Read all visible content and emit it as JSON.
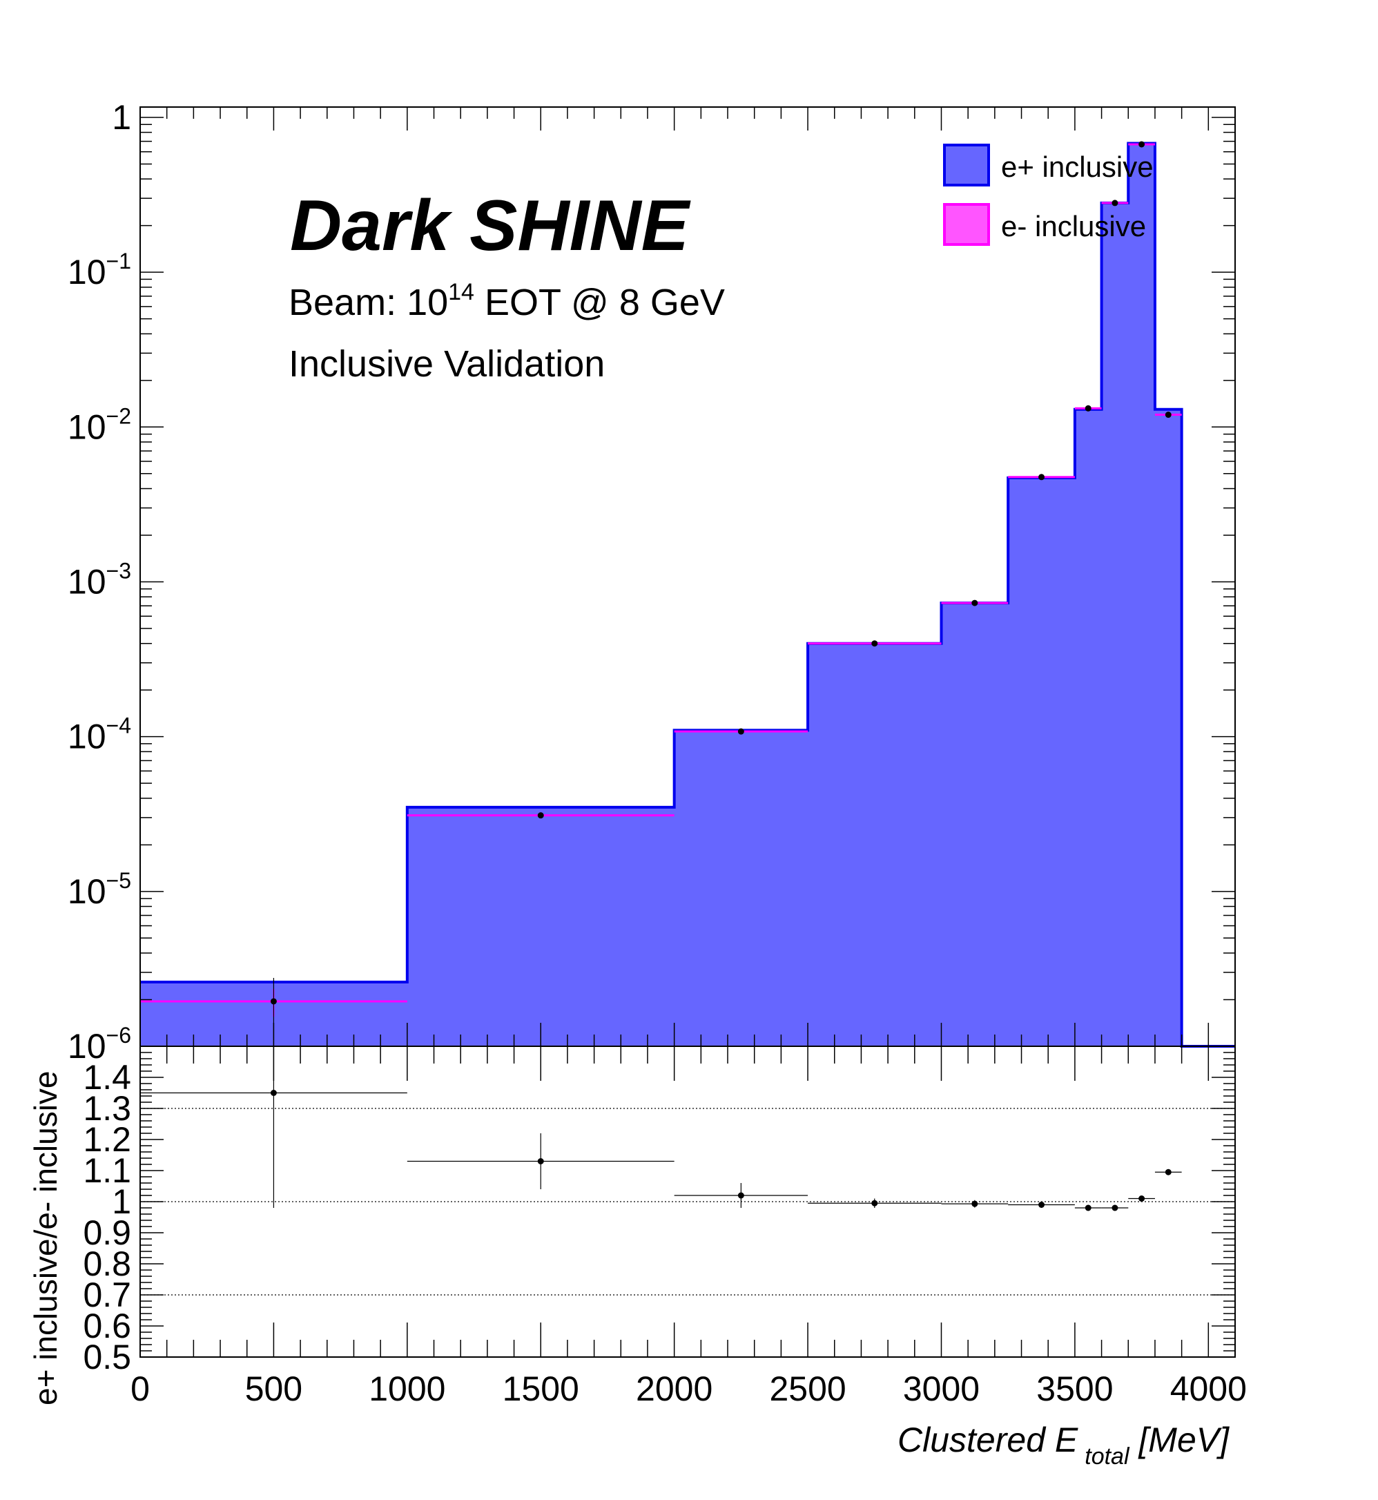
{
  "chart_data": [
    {
      "type": "histogram",
      "panel": "main",
      "label_title": "Dark SHINE",
      "label_beam_prefix": "Beam: 10",
      "label_beam_exp": "14",
      "label_beam_suffix": " EOT @ 8 GeV",
      "label_line3": "Inclusive Validation",
      "y_scale": "log",
      "ylim": [
        1e-06,
        1
      ],
      "y_ticks": [
        {
          "value": 1,
          "base": "1",
          "exp": ""
        },
        {
          "value": 0.1,
          "base": "10",
          "exp": "−1"
        },
        {
          "value": 0.01,
          "base": "10",
          "exp": "−2"
        },
        {
          "value": 0.001,
          "base": "10",
          "exp": "−3"
        },
        {
          "value": 0.0001,
          "base": "10",
          "exp": "−4"
        },
        {
          "value": 1e-05,
          "base": "10",
          "exp": "−5"
        },
        {
          "value": 1e-06,
          "base": "10",
          "exp": "−6"
        }
      ],
      "bin_edges": [
        0,
        1000,
        2000,
        2500,
        3000,
        3250,
        3500,
        3600,
        3700,
        3800,
        3900,
        4100
      ],
      "legend_position": "top-right",
      "series": [
        {
          "name": "e+ inclusive",
          "style": "filled",
          "fill": "#6666ff",
          "line": "#0000ee",
          "values": [
            2.6e-06,
            3.5e-05,
            0.00011,
            0.0004,
            0.00073,
            0.0047,
            0.013,
            0.28,
            0.68,
            0.013,
            0
          ]
        },
        {
          "name": "e- inclusive",
          "style": "markers",
          "fill": "#ff55ff",
          "line": "#ff00ff",
          "values": [
            1.95e-06,
            3.1e-05,
            0.000108,
            0.0004,
            0.00073,
            0.00475,
            0.0132,
            0.28,
            0.67,
            0.012,
            null
          ],
          "errors": [
            4e-07,
            1e-06,
            2e-06,
            4e-06,
            6e-06,
            3e-05,
            0.0001,
            0.001,
            0.002,
            0.0001,
            null
          ]
        }
      ]
    },
    {
      "type": "ratio",
      "panel": "ratio",
      "ylabel": "e+ inclusive/e- inclusive",
      "xlabel": "Clustered E",
      "xlabel_sub": "total",
      "xlabel_unit": " [MeV]",
      "xlim": [
        0,
        4100
      ],
      "ylim": [
        0.5,
        1.5
      ],
      "x_ticks": [
        0,
        500,
        1000,
        1500,
        2000,
        2500,
        3000,
        3500,
        4000
      ],
      "y_ticks": [
        0.5,
        0.6,
        0.7,
        0.8,
        0.9,
        1,
        1.1,
        1.2,
        1.3,
        1.4
      ],
      "reference_lines": [
        0.7,
        1.0,
        1.3
      ],
      "points": [
        {
          "x": 500,
          "y": 1.35,
          "xerr": 500,
          "yerr": 0.37
        },
        {
          "x": 1500,
          "y": 1.13,
          "xerr": 500,
          "yerr": 0.09
        },
        {
          "x": 2250,
          "y": 1.02,
          "xerr": 250,
          "yerr": 0.04
        },
        {
          "x": 2750,
          "y": 0.995,
          "xerr": 250,
          "yerr": 0.015
        },
        {
          "x": 3125,
          "y": 0.993,
          "xerr": 125,
          "yerr": 0.012
        },
        {
          "x": 3375,
          "y": 0.99,
          "xerr": 125,
          "yerr": 0.01
        },
        {
          "x": 3550,
          "y": 0.98,
          "xerr": 50,
          "yerr": 0.008
        },
        {
          "x": 3650,
          "y": 0.98,
          "xerr": 50,
          "yerr": 0.006
        },
        {
          "x": 3750,
          "y": 1.01,
          "xerr": 50,
          "yerr": 0.005
        },
        {
          "x": 3850,
          "y": 1.095,
          "xerr": 50,
          "yerr": 0.008
        }
      ]
    }
  ]
}
